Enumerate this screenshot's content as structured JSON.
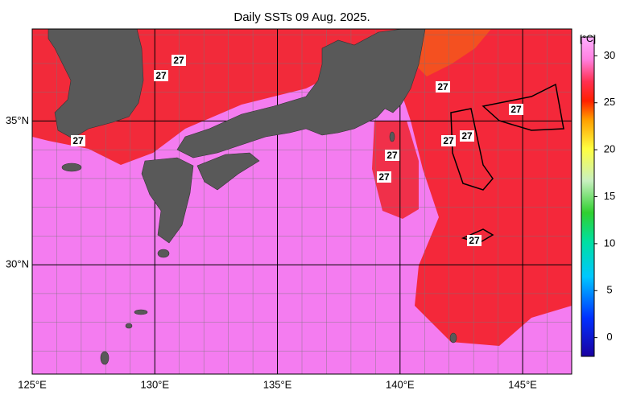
{
  "title": "Daily SSTs 09 Aug. 2025.",
  "map": {
    "lonlim": [
      125,
      147
    ],
    "latlim": [
      26.2,
      38.2
    ],
    "lonticks": [
      {
        "value": 125,
        "label": "125°E"
      },
      {
        "value": 130,
        "label": "130°E"
      },
      {
        "value": 135,
        "label": "135°E"
      },
      {
        "value": 140,
        "label": "140°E"
      },
      {
        "value": 145,
        "label": "145°E"
      }
    ],
    "latticks": [
      {
        "value": 35,
        "label": "35°N"
      },
      {
        "value": 30,
        "label": "30°N"
      }
    ],
    "contour_labels": [
      "27",
      "27",
      "27",
      "27",
      "27",
      "27",
      "27",
      "27",
      "27",
      "27"
    ]
  },
  "colorbar": {
    "unit": "[°C]",
    "lim": [
      -2,
      32
    ],
    "ticks": [
      0,
      5,
      10,
      15,
      20,
      25,
      30
    ]
  }
}
